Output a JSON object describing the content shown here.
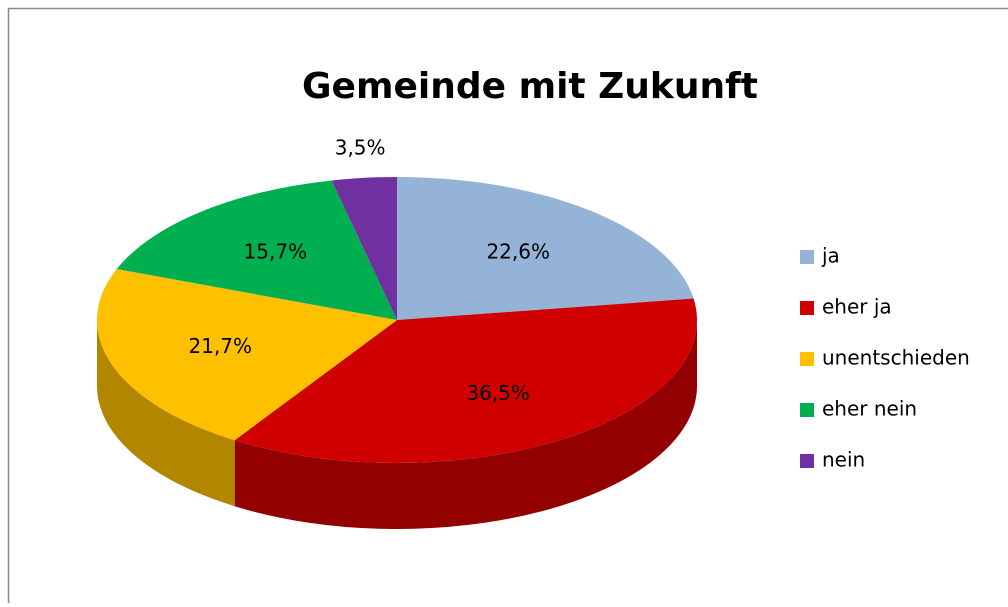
{
  "chart_data": {
    "type": "pie",
    "title": "Gemeinde mit Zukunft",
    "categories": [
      "ja",
      "eher ja",
      "unentschieden",
      "eher nein",
      "nein"
    ],
    "values": [
      22.6,
      36.5,
      21.7,
      15.7,
      3.5
    ],
    "value_labels": [
      "22,6%",
      "36,5%",
      "21,7%",
      "15,7%",
      "3,5%"
    ],
    "colors": [
      "#95b3d7",
      "#d00000",
      "#ffc000",
      "#00b050",
      "#7030a0"
    ],
    "legend": "right"
  }
}
